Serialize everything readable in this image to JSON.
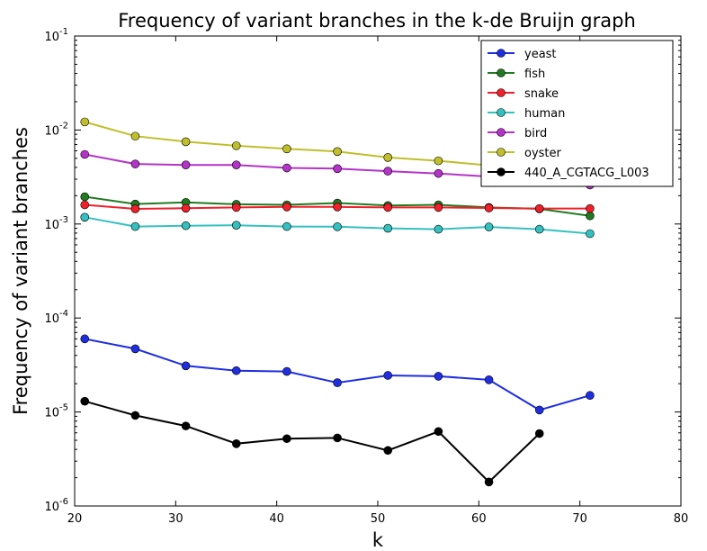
{
  "chart_data": {
    "type": "line",
    "title": "Frequency of variant branches in the k-de Bruijn graph",
    "xlabel": "k",
    "ylabel": "Frequency of variant branches",
    "xlim": [
      20,
      80
    ],
    "ylim": [
      1e-06,
      0.1
    ],
    "yscale": "log",
    "grid": false,
    "legend_position": "top-right",
    "x_ticks": [
      "20",
      "30",
      "40",
      "50",
      "60",
      "70",
      "80"
    ],
    "y_ticks": [
      {
        "base": "10",
        "exp": "-6",
        "value": 1e-06
      },
      {
        "base": "10",
        "exp": "-5",
        "value": 1e-05
      },
      {
        "base": "10",
        "exp": "-4",
        "value": 0.0001
      },
      {
        "base": "10",
        "exp": "-3",
        "value": 0.001
      },
      {
        "base": "10",
        "exp": "-2",
        "value": 0.01
      },
      {
        "base": "10",
        "exp": "-1",
        "value": 0.1
      }
    ],
    "series": [
      {
        "name": "yeast",
        "color": "#1f2fe0",
        "x": [
          21,
          26,
          31,
          36,
          41,
          46,
          51,
          56,
          61,
          66,
          71
        ],
        "values": [
          6e-05,
          4.7e-05,
          3.1e-05,
          2.75e-05,
          2.7e-05,
          2.05e-05,
          2.45e-05,
          2.4e-05,
          2.2e-05,
          1.05e-05,
          1.5e-05
        ]
      },
      {
        "name": "fish",
        "color": "#217a21",
        "x": [
          21,
          26,
          31,
          36,
          41,
          46,
          51,
          56,
          61,
          66,
          71
        ],
        "values": [
          0.00195,
          0.00163,
          0.0017,
          0.00162,
          0.0016,
          0.00167,
          0.00157,
          0.0016,
          0.0015,
          0.00145,
          0.00122
        ]
      },
      {
        "name": "snake",
        "color": "#f0202a",
        "x": [
          21,
          26,
          31,
          36,
          41,
          46,
          51,
          56,
          61,
          66,
          71
        ],
        "values": [
          0.0016,
          0.00145,
          0.00147,
          0.0015,
          0.00152,
          0.00152,
          0.0015,
          0.0015,
          0.00148,
          0.00146,
          0.00146
        ]
      },
      {
        "name": "human",
        "color": "#35c0c0",
        "x": [
          21,
          26,
          31,
          36,
          41,
          46,
          51,
          56,
          61,
          66,
          71
        ],
        "values": [
          0.00118,
          0.00094,
          0.00096,
          0.00097,
          0.00094,
          0.000935,
          0.0009,
          0.00088,
          0.00093,
          0.00088,
          0.00079
        ]
      },
      {
        "name": "bird",
        "color": "#b433c8",
        "x": [
          21,
          26,
          31,
          36,
          41,
          46,
          51,
          56,
          61,
          66,
          71
        ],
        "values": [
          0.0055,
          0.00435,
          0.00425,
          0.00425,
          0.00395,
          0.00388,
          0.00365,
          0.00345,
          0.0032,
          0.00295,
          0.0026
        ]
      },
      {
        "name": "oyster",
        "color": "#bfbf2c",
        "x": [
          21,
          26,
          31,
          36,
          41,
          46,
          51,
          56,
          61,
          66,
          71
        ],
        "values": [
          0.0122,
          0.0086,
          0.0075,
          0.0068,
          0.0063,
          0.0059,
          0.0051,
          0.0047,
          0.0042,
          0.0038,
          0.0034
        ]
      },
      {
        "name": "440_A_CGTACG_L003",
        "color": "#000000",
        "x": [
          21,
          26,
          31,
          36,
          41,
          46,
          51,
          56,
          61,
          66
        ],
        "values": [
          1.3e-05,
          9.2e-06,
          7.1e-06,
          4.6e-06,
          5.2e-06,
          5.3e-06,
          3.9e-06,
          6.2e-06,
          1.8e-06,
          5.9e-06
        ]
      }
    ]
  }
}
